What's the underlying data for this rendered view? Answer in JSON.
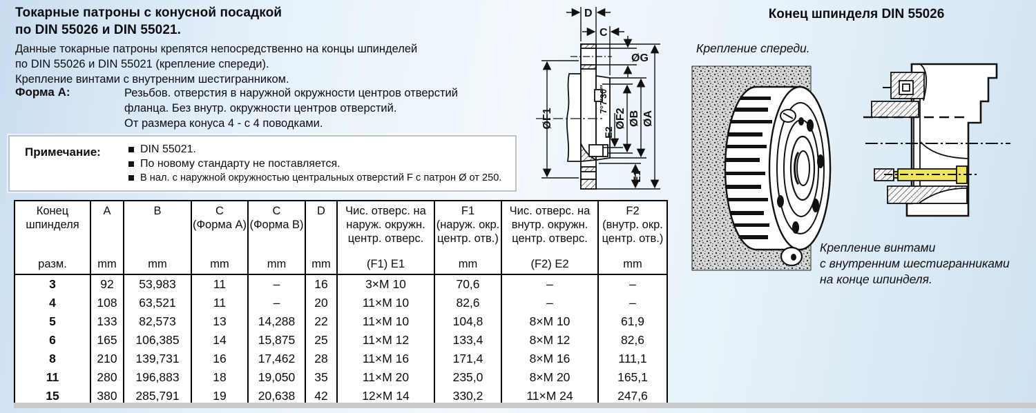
{
  "page": {
    "title": [
      "Токарные патроны с конусной посадкой",
      "по DIN 55026 и DIN 55021."
    ],
    "intro": [
      "Данные токарные патроны крепятся непосредственно на концы шпинделей",
      "по DIN 55026 и DIN 55021 (крепление спереди).",
      "Крепление винтами с внутренним шестигранником."
    ],
    "forma_label": "Форма A:",
    "forma_lines": [
      "Резьбов. отверстия в наружной окружности центров отверстий",
      "фланца. Без внутр. окружности центров отверстий.",
      "От размера конуса 4 - с 4 поводками."
    ],
    "note_label": "Примечание:",
    "note_items": [
      "DIN 55021.",
      "По новому стандарту не поставляется.",
      "В нал. с наружной окружностью центральных отверстий F с патрон Ø от 250."
    ]
  },
  "table": {
    "columns": [
      {
        "lines": [
          "Конец",
          "шпинделя"
        ],
        "unit": "разм."
      },
      {
        "lines": [
          "A"
        ],
        "unit": "mm"
      },
      {
        "lines": [
          "B"
        ],
        "unit": "mm"
      },
      {
        "lines": [
          "C",
          "(Форма A)"
        ],
        "unit": "mm"
      },
      {
        "lines": [
          "C",
          "(Форма B)"
        ],
        "unit": "mm"
      },
      {
        "lines": [
          "D"
        ],
        "unit": "mm"
      },
      {
        "lines": [
          "Чис. отверс. на",
          "наруж. окружн.",
          "центр. отверс."
        ],
        "unit": "(F1) E1"
      },
      {
        "lines": [
          "F1",
          "(наруж. окр.",
          "центр. отв.)"
        ],
        "unit": "mm"
      },
      {
        "lines": [
          "Чис. отверс. на",
          "внутр. окружн.",
          "центр. отверс."
        ],
        "unit": "(F2) E2"
      },
      {
        "lines": [
          "F2",
          "(внутр. окр.",
          "центр. отв.)"
        ],
        "unit": "mm"
      }
    ],
    "rows": [
      [
        "3",
        "92",
        "53,983",
        "11",
        "–",
        "16",
        "3×M 10",
        "70,6",
        "–",
        "–"
      ],
      [
        "4",
        "108",
        "63,521",
        "11",
        "–",
        "20",
        "11×M 10",
        "82,6",
        "–",
        "–"
      ],
      [
        "5",
        "133",
        "82,573",
        "13",
        "14,288",
        "22",
        "11×M 10",
        "104,8",
        "8×M 10",
        "61,9"
      ],
      [
        "6",
        "165",
        "106,385",
        "14",
        "15,875",
        "25",
        "11×M 12",
        "133,4",
        "8×M 12",
        "82,6"
      ],
      [
        "8",
        "210",
        "139,731",
        "16",
        "17,462",
        "28",
        "11×M 16",
        "171,4",
        "8×M 16",
        "111,1"
      ],
      [
        "11",
        "280",
        "196,883",
        "18",
        "19,050",
        "35",
        "11×M 20",
        "235,0",
        "8×M 20",
        "165,1"
      ],
      [
        "15",
        "380",
        "285,791",
        "19",
        "20,638",
        "42",
        "12×M 14",
        "330,2",
        "11×M 24",
        "247,6"
      ]
    ]
  },
  "diagram_labels": {
    "d": "D",
    "c": "C",
    "g": "ØG",
    "f1": "ØF1",
    "e2": "E2",
    "angle": "7°7′30″",
    "f2": "ØF2",
    "b": "ØB",
    "a": "ØA",
    "e1": "E1"
  },
  "right": {
    "heading": "Конец шпинделя DIN 55026",
    "caption_front": "Крепление спереди.",
    "caption_screw": [
      "Крепление винтами",
      "с внутренним шестигранниками",
      "на конце шпинделя."
    ]
  },
  "colors": {
    "screw_yellow": "#efe45e",
    "strip_gray": "#c9cacb"
  }
}
